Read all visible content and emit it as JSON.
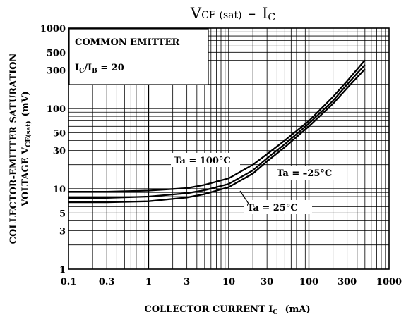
{
  "chart_data": {
    "type": "line",
    "title": {
      "main": "V",
      "sub": "CE (sat)",
      "dash": "–",
      "tail": "I",
      "tail_sub": "C"
    },
    "xlabel": {
      "main": "COLLECTOR CURRENT  I",
      "sub": "C",
      "unit": "(mA)"
    },
    "ylabel": {
      "line1": "COLLECTOR-EMITTER SATURATION",
      "line2a": "VOLTAGE   V",
      "line2sub": "CE(sat)",
      "line2b": "(mV)"
    },
    "x_scale": "log",
    "y_scale": "log",
    "xlim": [
      0.1,
      1000
    ],
    "ylim": [
      1,
      1000
    ],
    "x_ticks": [
      {
        "v": 0.1,
        "label": "0.1"
      },
      {
        "v": 0.3,
        "label": "0.3"
      },
      {
        "v": 1,
        "label": "1"
      },
      {
        "v": 3,
        "label": "3"
      },
      {
        "v": 10,
        "label": "10"
      },
      {
        "v": 30,
        "label": "30"
      },
      {
        "v": 100,
        "label": "100"
      },
      {
        "v": 300,
        "label": "300"
      },
      {
        "v": 1000,
        "label": "1000"
      }
    ],
    "y_ticks": [
      {
        "v": 1,
        "label": "1"
      },
      {
        "v": 3,
        "label": "3"
      },
      {
        "v": 5,
        "label": "5"
      },
      {
        "v": 10,
        "label": "10"
      },
      {
        "v": 30,
        "label": "30"
      },
      {
        "v": 50,
        "label": "50"
      },
      {
        "v": 100,
        "label": "100"
      },
      {
        "v": 300,
        "label": "300"
      },
      {
        "v": 500,
        "label": "500"
      },
      {
        "v": 1000,
        "label": "1000"
      }
    ],
    "grid": true,
    "conditions": {
      "line1": "COMMON EMITTER",
      "line2": {
        "a": "I",
        "a_sub": "C",
        "slash": "/I",
        "b_sub": "B",
        "eq": " = 20"
      }
    },
    "series": [
      {
        "name": "Ta = 100°C",
        "x": [
          0.1,
          0.3,
          1,
          3,
          5,
          10,
          20,
          30,
          50,
          100,
          200,
          300,
          500
        ],
        "y": [
          9.2,
          9.2,
          9.5,
          10.2,
          11.2,
          13.5,
          20,
          27,
          40,
          70,
          140,
          220,
          400
        ]
      },
      {
        "name": "Ta = –25°C",
        "x": [
          0.1,
          0.3,
          1,
          3,
          5,
          10,
          20,
          30,
          50,
          100,
          200,
          300,
          500
        ],
        "y": [
          7.7,
          7.7,
          8.0,
          8.8,
          9.6,
          11.5,
          17,
          24,
          36,
          65,
          125,
          200,
          350
        ]
      },
      {
        "name": "Ta = 25°C",
        "x": [
          0.1,
          0.3,
          1,
          3,
          5,
          10,
          20,
          30,
          50,
          100,
          200,
          300,
          500
        ],
        "y": [
          6.8,
          6.8,
          7.0,
          7.8,
          8.6,
          10.5,
          15.5,
          22,
          33,
          60,
          115,
          180,
          310
        ]
      }
    ]
  }
}
